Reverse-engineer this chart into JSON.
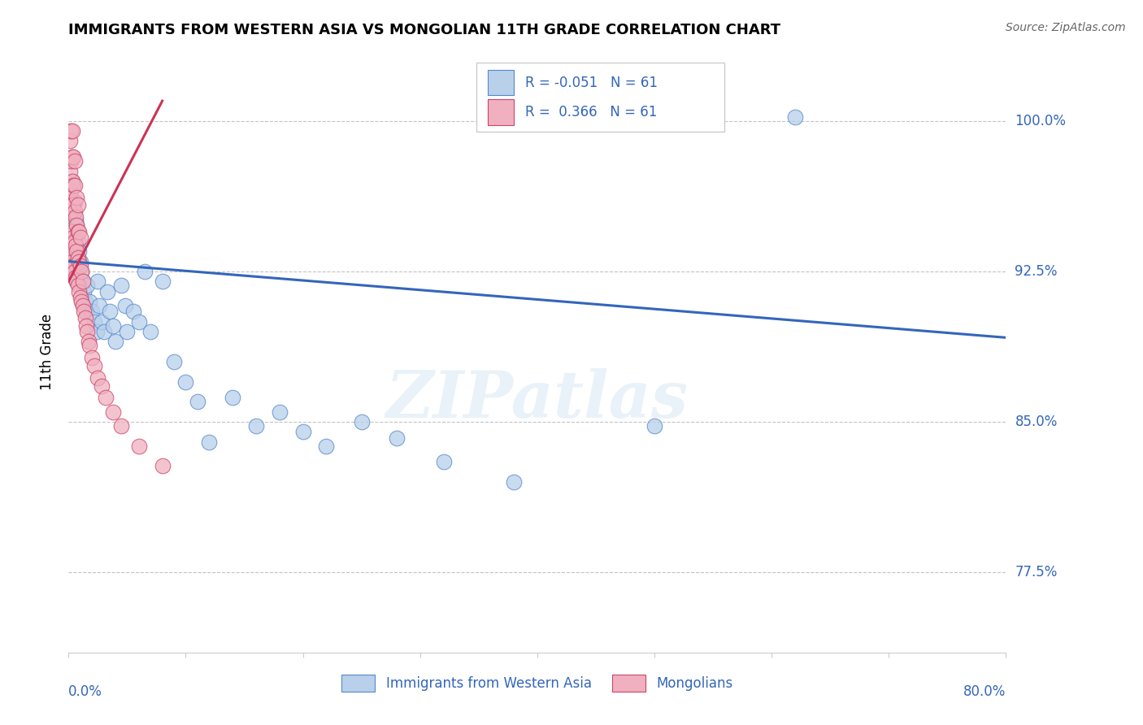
{
  "title": "IMMIGRANTS FROM WESTERN ASIA VS MONGOLIAN 11TH GRADE CORRELATION CHART",
  "source": "Source: ZipAtlas.com",
  "ylabel": "11th Grade",
  "ytick_labels": [
    "77.5%",
    "85.0%",
    "92.5%",
    "100.0%"
  ],
  "ytick_values": [
    0.775,
    0.85,
    0.925,
    1.0
  ],
  "xlim": [
    0.0,
    0.8
  ],
  "ylim": [
    0.735,
    1.035
  ],
  "blue_R": -0.051,
  "blue_N": 61,
  "pink_R": 0.366,
  "pink_N": 61,
  "blue_fill_color": "#b8d0ea",
  "blue_edge_color": "#5588cc",
  "pink_fill_color": "#f0b0c0",
  "pink_edge_color": "#cc4466",
  "blue_line_color": "#3366bb",
  "pink_line_color": "#cc3355",
  "legend_blue_label": "Immigrants from Western Asia",
  "legend_pink_label": "Mongolians",
  "watermark": "ZIPatlas",
  "blue_x": [
    0.002,
    0.003,
    0.003,
    0.003,
    0.004,
    0.004,
    0.005,
    0.005,
    0.005,
    0.006,
    0.006,
    0.007,
    0.007,
    0.007,
    0.008,
    0.008,
    0.009,
    0.009,
    0.01,
    0.01,
    0.011,
    0.012,
    0.013,
    0.014,
    0.015,
    0.016,
    0.018,
    0.02,
    0.022,
    0.024,
    0.025,
    0.026,
    0.028,
    0.03,
    0.033,
    0.035,
    0.038,
    0.04,
    0.045,
    0.048,
    0.05,
    0.055,
    0.06,
    0.065,
    0.07,
    0.08,
    0.09,
    0.1,
    0.11,
    0.12,
    0.14,
    0.16,
    0.18,
    0.2,
    0.22,
    0.25,
    0.28,
    0.32,
    0.38,
    0.5,
    0.62
  ],
  "blue_y": [
    0.96,
    0.97,
    0.94,
    0.925,
    0.955,
    0.935,
    0.96,
    0.945,
    0.93,
    0.95,
    0.935,
    0.948,
    0.932,
    0.92,
    0.94,
    0.928,
    0.935,
    0.92,
    0.93,
    0.918,
    0.925,
    0.92,
    0.915,
    0.91,
    0.905,
    0.918,
    0.91,
    0.905,
    0.9,
    0.895,
    0.92,
    0.908,
    0.9,
    0.895,
    0.915,
    0.905,
    0.898,
    0.89,
    0.918,
    0.908,
    0.895,
    0.905,
    0.9,
    0.925,
    0.895,
    0.92,
    0.88,
    0.87,
    0.86,
    0.84,
    0.862,
    0.848,
    0.855,
    0.845,
    0.838,
    0.85,
    0.842,
    0.83,
    0.82,
    0.848,
    1.002
  ],
  "pink_x": [
    0.001,
    0.001,
    0.001,
    0.001,
    0.002,
    0.002,
    0.002,
    0.002,
    0.002,
    0.003,
    0.003,
    0.003,
    0.003,
    0.003,
    0.003,
    0.004,
    0.004,
    0.004,
    0.004,
    0.004,
    0.005,
    0.005,
    0.005,
    0.005,
    0.005,
    0.006,
    0.006,
    0.006,
    0.007,
    0.007,
    0.007,
    0.007,
    0.008,
    0.008,
    0.008,
    0.008,
    0.009,
    0.009,
    0.009,
    0.01,
    0.01,
    0.01,
    0.011,
    0.011,
    0.012,
    0.012,
    0.013,
    0.014,
    0.015,
    0.016,
    0.017,
    0.018,
    0.02,
    0.022,
    0.025,
    0.028,
    0.032,
    0.038,
    0.045,
    0.06,
    0.08
  ],
  "pink_y": [
    0.94,
    0.96,
    0.975,
    0.99,
    0.935,
    0.955,
    0.965,
    0.98,
    0.995,
    0.93,
    0.945,
    0.958,
    0.97,
    0.982,
    0.995,
    0.928,
    0.942,
    0.958,
    0.968,
    0.982,
    0.925,
    0.94,
    0.955,
    0.968,
    0.98,
    0.922,
    0.938,
    0.952,
    0.92,
    0.935,
    0.948,
    0.962,
    0.918,
    0.932,
    0.945,
    0.958,
    0.915,
    0.93,
    0.945,
    0.912,
    0.928,
    0.942,
    0.91,
    0.925,
    0.908,
    0.92,
    0.905,
    0.902,
    0.898,
    0.895,
    0.89,
    0.888,
    0.882,
    0.878,
    0.872,
    0.868,
    0.862,
    0.855,
    0.848,
    0.838,
    0.828
  ],
  "blue_line_x": [
    0.0,
    0.8
  ],
  "blue_line_y": [
    0.93,
    0.892
  ],
  "pink_line_x": [
    0.0,
    0.08
  ],
  "pink_line_y": [
    0.92,
    1.01
  ]
}
